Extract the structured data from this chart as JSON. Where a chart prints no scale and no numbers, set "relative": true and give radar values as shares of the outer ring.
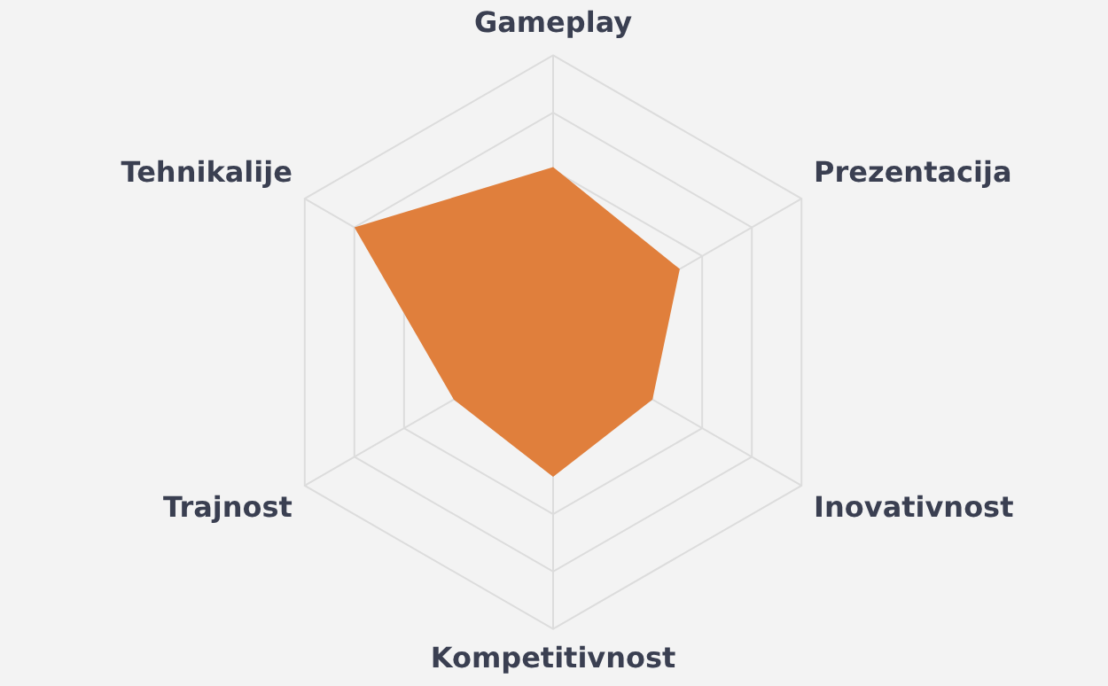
{
  "chart_data": {
    "type": "radar",
    "relative": true,
    "grid": true,
    "categories": [
      "Gameplay",
      "Prezentacija",
      "Inovativnost",
      "Kompetitivnost",
      "Trajnost",
      "Tehnikalije"
    ],
    "series": [
      {
        "color": "#e07f3c",
        "values": [
          0.61,
          0.51,
          0.4,
          0.47,
          0.4,
          0.8
        ]
      }
    ]
  }
}
